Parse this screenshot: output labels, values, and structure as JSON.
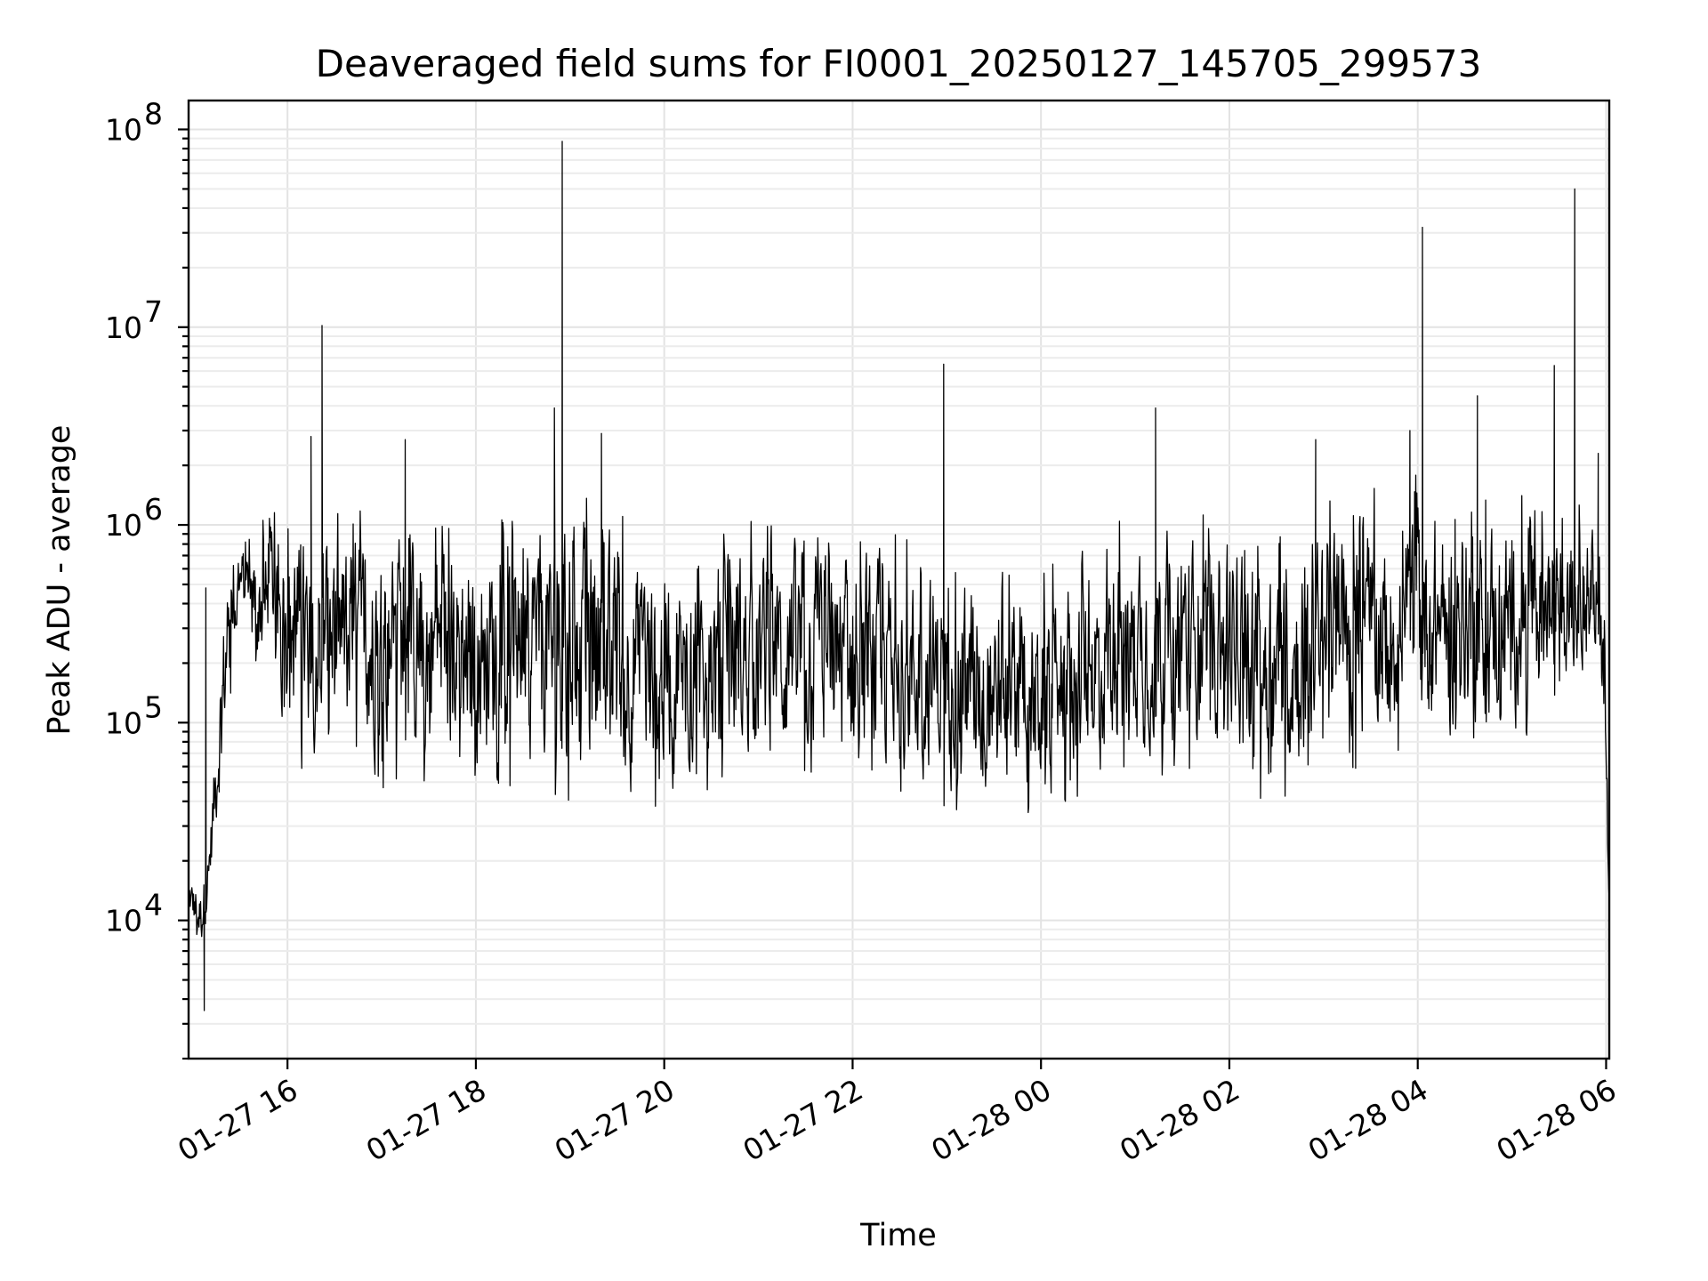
{
  "chart_data": {
    "type": "line",
    "title": "Deaveraged field sums for FI0001_20250127_145705_299573",
    "xlabel": "Time",
    "ylabel": "Peak ADU - average",
    "yscale": "log",
    "ylim": [
      2000,
      140000000
    ],
    "xlim": [
      "2025-01-27 14:57",
      "2025-01-28 06:02"
    ],
    "grid": "on (major and minor)",
    "x_tick_labels": [
      "01-27 16",
      "01-27 18",
      "01-27 20",
      "01-27 22",
      "01-28 00",
      "01-28 02",
      "01-28 04",
      "01-28 06"
    ],
    "y_tick_labels": [
      {
        "base": "10",
        "exp": "4"
      },
      {
        "base": "10",
        "exp": "5"
      },
      {
        "base": "10",
        "exp": "6"
      },
      {
        "base": "10",
        "exp": "7"
      },
      {
        "base": "10",
        "exp": "8"
      }
    ],
    "series": [
      {
        "color": "#000000",
        "band": {
          "note_x": "time as 'YYYY-MM-DD HH:MM'",
          "x": [
            "2025-01-27 14:57",
            "2025-01-27 15:05",
            "2025-01-27 15:10",
            "2025-01-27 15:20",
            "2025-01-27 15:30",
            "2025-01-27 16:00",
            "2025-01-27 17:00",
            "2025-01-27 18:00",
            "2025-01-27 19:00",
            "2025-01-27 19:30",
            "2025-01-27 20:00",
            "2025-01-27 21:00",
            "2025-01-27 22:00",
            "2025-01-27 23:00",
            "2025-01-28 00:00",
            "2025-01-28 01:00",
            "2025-01-28 02:00",
            "2025-01-28 02:30",
            "2025-01-28 03:00",
            "2025-01-28 04:00",
            "2025-01-28 05:00",
            "2025-01-28 05:45",
            "2025-01-28 05:58",
            "2025-01-28 06:02"
          ],
          "low": [
            9500,
            6500,
            11000,
            60000,
            300000,
            60000,
            45000,
            45000,
            40000,
            35000,
            35000,
            45000,
            40000,
            35000,
            30000,
            50000,
            65000,
            30000,
            55000,
            65000,
            70000,
            150000,
            90000,
            9000
          ],
          "high": [
            18000,
            17000,
            30000,
            600000,
            900000,
            1300000,
            1300000,
            1200000,
            1500000,
            1200000,
            900000,
            1100000,
            1100000,
            800000,
            600000,
            1300000,
            1200000,
            1100000,
            1300000,
            1800000,
            1500000,
            1300000,
            1000000,
            20000
          ]
        },
        "spikes": [
          {
            "x": "2025-01-27 15:07",
            "y": 3500
          },
          {
            "x": "2025-01-27 15:08",
            "y": 480000
          },
          {
            "x": "2025-01-27 16:22",
            "y": 10200000
          },
          {
            "x": "2025-01-27 16:15",
            "y": 2800000
          },
          {
            "x": "2025-01-27 17:15",
            "y": 2700000
          },
          {
            "x": "2025-01-27 18:50",
            "y": 3900000
          },
          {
            "x": "2025-01-27 18:55",
            "y": 87000000
          },
          {
            "x": "2025-01-27 19:20",
            "y": 2900000
          },
          {
            "x": "2025-01-27 22:58",
            "y": 6500000
          },
          {
            "x": "2025-01-28 01:13",
            "y": 3900000
          },
          {
            "x": "2025-01-28 02:55",
            "y": 2700000
          },
          {
            "x": "2025-01-28 03:55",
            "y": 3000000
          },
          {
            "x": "2025-01-28 04:03",
            "y": 32000000
          },
          {
            "x": "2025-01-28 04:38",
            "y": 4500000
          },
          {
            "x": "2025-01-28 05:27",
            "y": 6400000
          },
          {
            "x": "2025-01-28 05:40",
            "y": 50000000
          },
          {
            "x": "2025-01-28 05:55",
            "y": 2300000
          }
        ]
      }
    ]
  }
}
